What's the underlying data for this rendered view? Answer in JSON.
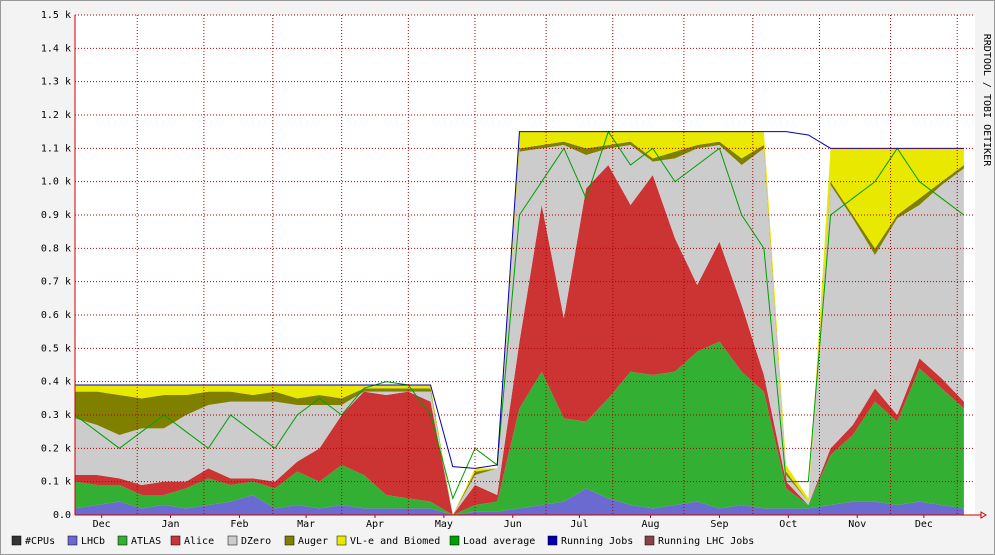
{
  "chart_data": {
    "type": "stacked-area",
    "watermark": "RRDTOOL / TOBI OETIKER",
    "x": [
      0,
      10,
      20,
      30,
      40,
      50,
      60,
      70,
      80,
      90,
      100,
      110,
      120,
      130,
      140,
      150,
      160,
      170,
      180,
      190,
      200,
      210,
      220,
      230,
      240,
      250,
      260,
      270,
      280,
      290,
      300,
      310,
      320,
      330,
      340,
      350,
      360,
      370,
      380,
      390,
      400
    ],
    "xlim": [
      0,
      405
    ],
    "xticks": [
      {
        "value": 12,
        "label": "Dec"
      },
      {
        "value": 43,
        "label": "Jan"
      },
      {
        "value": 74,
        "label": "Feb"
      },
      {
        "value": 104,
        "label": "Mar"
      },
      {
        "value": 135,
        "label": "Apr"
      },
      {
        "value": 166,
        "label": "May"
      },
      {
        "value": 197,
        "label": "Jun"
      },
      {
        "value": 227,
        "label": "Jul"
      },
      {
        "value": 259,
        "label": "Aug"
      },
      {
        "value": 290,
        "label": "Sep"
      },
      {
        "value": 321,
        "label": "Oct"
      },
      {
        "value": 352,
        "label": "Nov"
      },
      {
        "value": 382,
        "label": "Dec"
      }
    ],
    "xgrid": [
      28,
      58,
      89,
      120,
      150,
      180,
      212,
      242,
      274,
      305,
      335,
      367,
      397
    ],
    "ylim": [
      0,
      1500
    ],
    "yticks": [
      {
        "value": 0,
        "label": "0.0"
      },
      {
        "value": 100,
        "label": "0.1 k"
      },
      {
        "value": 200,
        "label": "0.2 k"
      },
      {
        "value": 300,
        "label": "0.3 k"
      },
      {
        "value": 400,
        "label": "0.4 k"
      },
      {
        "value": 500,
        "label": "0.5 k"
      },
      {
        "value": 600,
        "label": "0.6 k"
      },
      {
        "value": 700,
        "label": "0.7 k"
      },
      {
        "value": 800,
        "label": "0.8 k"
      },
      {
        "value": 900,
        "label": "0.9 k"
      },
      {
        "value": 1000,
        "label": "1.0 k"
      },
      {
        "value": 1100,
        "label": "1.1 k"
      },
      {
        "value": 1200,
        "label": "1.2 k"
      },
      {
        "value": 1300,
        "label": "1.3 k"
      },
      {
        "value": 1400,
        "label": "1.4 k"
      },
      {
        "value": 1500,
        "label": "1.5 k"
      }
    ],
    "grid": true,
    "series": [
      {
        "name": "#CPUs",
        "color": "#333333",
        "kind": "line",
        "values": [
          null,
          null,
          null,
          null,
          null,
          null,
          null,
          null,
          null,
          null,
          null,
          null,
          null,
          null,
          null,
          null,
          null,
          null,
          null,
          null,
          null,
          null,
          null,
          null,
          null,
          null,
          null,
          null,
          null,
          null,
          null,
          null,
          null,
          null,
          null,
          null,
          null,
          null,
          null,
          null,
          null
        ]
      },
      {
        "name": "LHCb",
        "color": "#6a6ad0",
        "kind": "area",
        "values": [
          20,
          30,
          40,
          20,
          30,
          20,
          30,
          40,
          60,
          20,
          30,
          20,
          30,
          20,
          20,
          20,
          20,
          0,
          10,
          10,
          20,
          30,
          40,
          80,
          50,
          30,
          20,
          30,
          40,
          20,
          30,
          20,
          20,
          20,
          30,
          40,
          40,
          30,
          40,
          30,
          20
        ]
      },
      {
        "name": "ATLAS",
        "color": "#33b033",
        "kind": "area",
        "values": [
          80,
          60,
          50,
          40,
          30,
          60,
          80,
          50,
          40,
          60,
          100,
          80,
          120,
          100,
          40,
          30,
          20,
          0,
          20,
          30,
          300,
          400,
          250,
          200,
          300,
          400,
          400,
          400,
          450,
          500,
          400,
          350,
          60,
          10,
          150,
          200,
          300,
          250,
          400,
          350,
          300
        ]
      },
      {
        "name": "Alice",
        "color": "#cc3333",
        "kind": "area",
        "values": [
          20,
          30,
          20,
          30,
          40,
          20,
          30,
          20,
          10,
          20,
          30,
          100,
          150,
          250,
          300,
          320,
          300,
          0,
          60,
          20,
          200,
          500,
          300,
          700,
          700,
          500,
          600,
          400,
          200,
          300,
          200,
          50,
          20,
          0,
          20,
          30,
          40,
          20,
          30,
          30,
          20
        ]
      },
      {
        "name": "DZero",
        "color": "#cccccc",
        "kind": "area",
        "values": [
          170,
          150,
          130,
          170,
          160,
          200,
          190,
          230,
          230,
          240,
          170,
          130,
          30,
          0,
          10,
          0,
          30,
          0,
          30,
          80,
          570,
          170,
          520,
          100,
          50,
          180,
          40,
          240,
          410,
          290,
          420,
          680,
          20,
          10,
          790,
          620,
          400,
          590,
          460,
          580,
          700
        ]
      },
      {
        "name": "Auger",
        "color": "#808000",
        "kind": "area",
        "values": [
          80,
          100,
          120,
          90,
          100,
          60,
          40,
          30,
          20,
          30,
          20,
          30,
          20,
          10,
          10,
          10,
          10,
          0,
          10,
          0,
          10,
          10,
          10,
          20,
          10,
          10,
          10,
          20,
          10,
          10,
          20,
          10,
          10,
          0,
          10,
          10,
          20,
          10,
          20,
          10,
          10
        ]
      },
      {
        "name": "VL-e and Biomed",
        "color": "#e8e800",
        "kind": "area",
        "values": [
          20,
          20,
          30,
          40,
          30,
          30,
          20,
          20,
          30,
          20,
          40,
          30,
          40,
          10,
          10,
          10,
          10,
          0,
          10,
          0,
          50,
          40,
          30,
          50,
          40,
          30,
          80,
          60,
          40,
          30,
          80,
          40,
          20,
          10,
          100,
          200,
          300,
          200,
          150,
          100,
          50
        ]
      },
      {
        "name": "Load average",
        "color": "#00a000",
        "kind": "line",
        "values": [
          300,
          250,
          200,
          250,
          300,
          250,
          200,
          300,
          250,
          200,
          300,
          350,
          300,
          380,
          400,
          390,
          300,
          50,
          200,
          150,
          900,
          1000,
          1100,
          950,
          1150,
          1050,
          1100,
          1000,
          1050,
          1100,
          900,
          800,
          100,
          100,
          900,
          950,
          1000,
          1100,
          1000,
          950,
          900
        ]
      },
      {
        "name": "Running Jobs",
        "color": "#0000b0",
        "kind": "line",
        "values": [
          390,
          390,
          390,
          390,
          390,
          390,
          390,
          390,
          390,
          390,
          390,
          390,
          390,
          390,
          390,
          390,
          390,
          145,
          140,
          150,
          1150,
          1150,
          1150,
          1150,
          1150,
          1150,
          1150,
          1150,
          1150,
          1150,
          1150,
          1150,
          1150,
          1140,
          1100,
          1100,
          1100,
          1100,
          1100,
          1100,
          1100
        ]
      },
      {
        "name": "Running LHC Jobs",
        "color": "#884444",
        "kind": "line",
        "values": [
          null,
          null,
          null,
          null,
          null,
          null,
          null,
          null,
          null,
          null,
          null,
          null,
          null,
          null,
          null,
          null,
          null,
          null,
          null,
          null,
          null,
          null,
          null,
          null,
          null,
          null,
          null,
          null,
          null,
          null,
          null,
          null,
          null,
          null,
          null,
          null,
          null,
          null,
          null,
          null,
          null
        ]
      }
    ]
  }
}
